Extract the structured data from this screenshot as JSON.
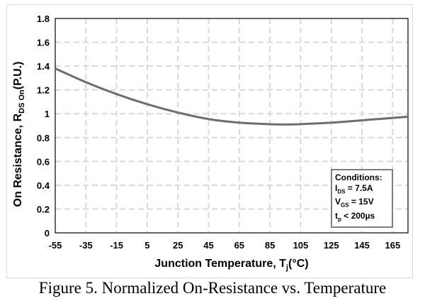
{
  "chart_data": {
    "type": "line",
    "title": "",
    "xlabel": "Junction Temperature, T",
    "xlabel_sub": "j",
    "xlabel_unit": "(°C)",
    "ylabel": "On Resistance, R",
    "ylabel_sub": "DS On",
    "ylabel_unit": "(P.U.)",
    "xlim": [
      -55,
      175
    ],
    "ylim": [
      0,
      1.8
    ],
    "x_ticks": [
      "-55",
      "-35",
      "-15",
      "5",
      "25",
      "45",
      "65",
      "85",
      "105",
      "125",
      "145",
      "165"
    ],
    "y_ticks": [
      "0",
      "0.2",
      "0.4",
      "0.6",
      "0.8",
      "1",
      "1.2",
      "1.4",
      "1.6",
      "1.8"
    ],
    "grid": true,
    "series": [
      {
        "name": "RDS On",
        "color": "#6e6e6e",
        "x": [
          -55,
          -35,
          -15,
          5,
          25,
          45,
          65,
          85,
          95,
          105,
          125,
          145,
          165,
          175
        ],
        "y": [
          1.38,
          1.265,
          1.165,
          1.08,
          1.01,
          0.955,
          0.925,
          0.912,
          0.91,
          0.913,
          0.925,
          0.945,
          0.965,
          0.975
        ]
      }
    ],
    "annotation": {
      "title": "Conditions:",
      "lines": [
        {
          "main": "I",
          "sub": "DS",
          "rest": " = 7.5A"
        },
        {
          "main": "V",
          "sub": "GS",
          "rest": " = 15V"
        },
        {
          "main": "t",
          "sub": "p",
          "rest": " < 200µs"
        }
      ]
    }
  },
  "caption": "Figure 5. Normalized On-Resistance vs. Temperature"
}
